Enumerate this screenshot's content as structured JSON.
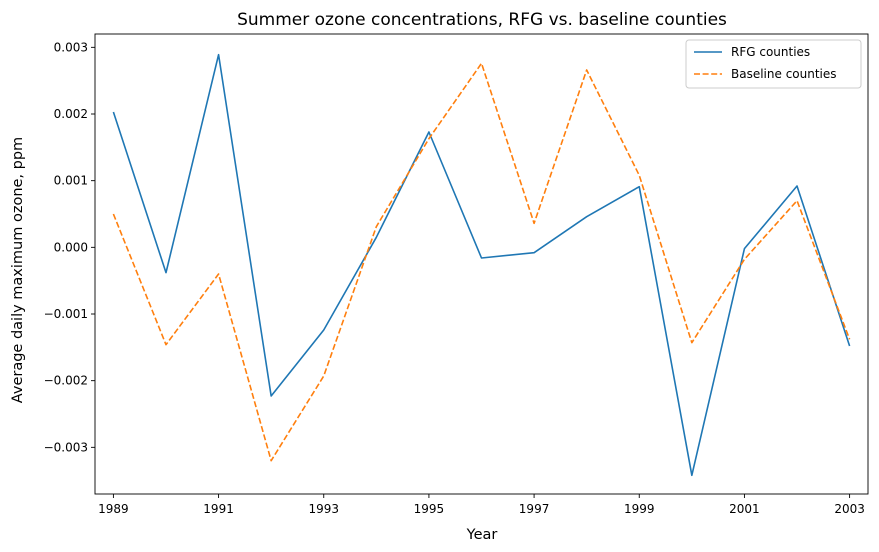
{
  "chart_data": {
    "type": "line",
    "title": "Summer ozone concentrations, RFG vs. baseline counties",
    "xlabel": "Year",
    "ylabel": "Average daily maximum ozone, ppm",
    "x": [
      1989,
      1990,
      1991,
      1992,
      1993,
      1994,
      1995,
      1996,
      1997,
      1998,
      1999,
      2000,
      2001,
      2002,
      2003
    ],
    "xlim": [
      1988.65,
      2003.35
    ],
    "ylim": [
      -0.0037,
      0.0032
    ],
    "xticks": [
      1989,
      1991,
      1993,
      1995,
      1997,
      1999,
      2001,
      2003
    ],
    "xtick_labels": [
      "1989",
      "1991",
      "1993",
      "1995",
      "1997",
      "1999",
      "2001",
      "2003"
    ],
    "yticks": [
      -0.003,
      -0.002,
      -0.001,
      0.0,
      0.001,
      0.002,
      0.003
    ],
    "ytick_labels": [
      "−0.003",
      "−0.002",
      "−0.001",
      "0.000",
      "0.001",
      "0.002",
      "0.003"
    ],
    "grid": false,
    "legend_position": "top-right",
    "series": [
      {
        "name": "RFG counties",
        "style": "solid",
        "color": "#1f77b4",
        "values": [
          0.00203,
          -0.00038,
          0.00289,
          -0.00223,
          -0.00124,
          0.00015,
          0.00173,
          -0.00016,
          -8e-05,
          0.00046,
          0.00091,
          -0.00342,
          -2e-05,
          0.00092,
          -0.00148
        ]
      },
      {
        "name": "Baseline counties",
        "style": "dashed",
        "color": "#ff7f0e",
        "values": [
          0.0005,
          -0.00146,
          -0.0004,
          -0.0032,
          -0.00193,
          0.00031,
          0.00163,
          0.00276,
          0.00036,
          0.00266,
          0.00108,
          -0.00143,
          -0.00018,
          0.0007,
          -0.00138
        ]
      }
    ]
  }
}
